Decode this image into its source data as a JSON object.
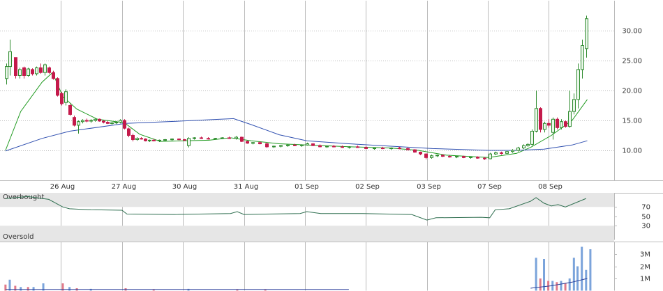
{
  "chart_data": [
    {
      "type": "candlestick",
      "x": [
        -0.9,
        -0.84,
        -0.75,
        -0.68,
        -0.61,
        -0.54,
        -0.47,
        -0.41,
        -0.34,
        -0.27,
        -0.2,
        -0.13,
        -0.06,
        0.01,
        0.08,
        0.14,
        0.21,
        0.28,
        0.35,
        0.42,
        0.49,
        0.56,
        0.62,
        0.69,
        0.76,
        0.83,
        0.9,
        0.97,
        1.04,
        1.11,
        1.17,
        1.24,
        1.31,
        1.38,
        1.45,
        1.52,
        1.61,
        1.7,
        1.81,
        1.93,
        2.02,
        2.09,
        2.18,
        2.3,
        2.41,
        2.52,
        2.64,
        2.75,
        2.87,
        2.96,
        3.05,
        3.14,
        3.26,
        3.37,
        3.49,
        3.6,
        3.71,
        3.83,
        3.94,
        4.03,
        4.13,
        4.24,
        4.35,
        4.47,
        4.61,
        4.72,
        4.86,
        5.0,
        5.13,
        5.27,
        5.41,
        5.54,
        5.68,
        5.8,
        5.89,
        5.98,
        6.07,
        6.16,
        6.25,
        6.37,
        6.48,
        6.6,
        6.71,
        6.83,
        6.94,
        7.03,
        7.12,
        7.22,
        7.31,
        7.4,
        7.49,
        7.58,
        7.65,
        7.72,
        7.79,
        7.86,
        7.92,
        7.99,
        8.06,
        8.13,
        8.2,
        8.27,
        8.34,
        8.41,
        8.47,
        8.54,
        8.61
      ],
      "open": [
        22,
        24,
        25.5,
        22.5,
        23.8,
        22.5,
        23.5,
        22.8,
        23.8,
        23,
        23.8,
        23,
        22,
        19.5,
        18,
        17.5,
        15.5,
        14.2,
        14.8,
        15,
        14.9,
        15,
        15.2,
        14.9,
        14.7,
        14.5,
        14.6,
        14.7,
        15,
        13.6,
        12.5,
        11.8,
        12,
        11.9,
        11.6,
        11.7,
        11.6,
        11.7,
        11.8,
        11.9,
        11.8,
        10.8,
        12,
        12.1,
        12,
        11.9,
        12,
        12.1,
        12,
        12.2,
        11.5,
        11.2,
        11.3,
        11.1,
        10.6,
        10.7,
        10.8,
        10.9,
        10.8,
        10.9,
        11.1,
        10.8,
        10.6,
        10.7,
        10.6,
        10.5,
        10.6,
        10.5,
        10.3,
        10.4,
        10.3,
        10.4,
        10.3,
        10.1,
        9.7,
        9.4,
        8.8,
        9.1,
        9.2,
        9.0,
        8.9,
        9.0,
        8.8,
        8.9,
        8.7,
        8.6,
        9.4,
        9.6,
        9.5,
        9.8,
        10.0,
        10.4,
        10.8,
        11.0,
        13.2,
        17.0,
        13.5,
        14.5,
        13.0,
        15.2,
        13.8,
        14.8,
        14.0,
        16.5,
        18.5,
        23.5,
        27.0
      ],
      "high": [
        24.5,
        28.5,
        25.5,
        23.8,
        24,
        23.8,
        23.7,
        24,
        24.5,
        24.5,
        24,
        23.3,
        22.2,
        19.8,
        20.2,
        17.8,
        15.8,
        15,
        15.2,
        15.3,
        15.2,
        15.3,
        15.3,
        15,
        14.9,
        14.7,
        14.9,
        15.2,
        15.2,
        13.8,
        12.8,
        12.2,
        12.2,
        12.0,
        11.8,
        11.9,
        11.8,
        11.9,
        12.0,
        12.0,
        11.9,
        12.2,
        12.2,
        12.3,
        12.2,
        12.1,
        12.2,
        12.3,
        12.4,
        12.3,
        11.6,
        11.4,
        11.5,
        11.3,
        10.8,
        10.9,
        11.0,
        11.1,
        11.0,
        11.3,
        11.2,
        11.0,
        10.8,
        10.9,
        10.8,
        10.7,
        10.8,
        10.7,
        10.5,
        10.6,
        10.5,
        10.6,
        10.5,
        10.2,
        9.8,
        9.5,
        9.3,
        9.3,
        9.3,
        9.2,
        9.1,
        9.1,
        9.0,
        9.0,
        8.9,
        9.6,
        9.8,
        9.8,
        9.9,
        10.2,
        10.6,
        11.0,
        11.2,
        13.5,
        20.0,
        17.2,
        14.8,
        15.2,
        15.5,
        15.5,
        15.2,
        15.0,
        20.0,
        19.5,
        24.5,
        28.5,
        32.5
      ],
      "low": [
        21,
        22.5,
        22,
        22,
        22,
        22.3,
        22.5,
        22.5,
        22.8,
        22.5,
        22.8,
        21.8,
        19,
        17.5,
        17.5,
        15.8,
        14,
        12.8,
        14.5,
        14.7,
        14.6,
        14.8,
        14.8,
        14.5,
        14.4,
        14.3,
        14.4,
        14.5,
        13.5,
        12.2,
        11.5,
        11.6,
        11.8,
        11.5,
        11.4,
        11.5,
        11.4,
        11.5,
        11.6,
        11.7,
        11.6,
        10.5,
        11.8,
        11.9,
        11.8,
        11.8,
        11.9,
        11.9,
        11.8,
        11.4,
        11.1,
        11.0,
        11.0,
        10.4,
        10.4,
        10.5,
        10.6,
        10.7,
        10.6,
        10.8,
        10.7,
        10.5,
        10.4,
        10.5,
        10.4,
        10.3,
        10.4,
        10.2,
        10.1,
        10.2,
        10.1,
        10.2,
        10.0,
        9.6,
        9.2,
        8.5,
        8.6,
        8.9,
        8.9,
        8.8,
        8.7,
        8.7,
        8.6,
        8.6,
        8.4,
        8.5,
        9.2,
        9.3,
        9.4,
        9.6,
        9.8,
        10.2,
        10.6,
        10.8,
        13.0,
        13.0,
        13.0,
        13.8,
        11.8,
        13.5,
        13.5,
        13.8,
        13.8,
        16.0,
        17.0,
        22.0,
        25.5
      ],
      "close": [
        24,
        26.5,
        22.5,
        23.5,
        22.5,
        23.6,
        22.8,
        23.8,
        23,
        24.3,
        23,
        22,
        19.2,
        17.8,
        19.8,
        16,
        14.2,
        14.8,
        15,
        14.9,
        15.0,
        15.2,
        14.9,
        14.7,
        14.5,
        14.6,
        14.7,
        15.0,
        13.7,
        12.5,
        11.8,
        12.0,
        11.9,
        11.6,
        11.7,
        11.6,
        11.7,
        11.8,
        11.9,
        11.8,
        11.7,
        12.0,
        12.1,
        12.0,
        11.9,
        12.0,
        12.1,
        12.0,
        12.2,
        11.5,
        11.2,
        11.3,
        11.1,
        10.6,
        10.7,
        10.8,
        10.9,
        10.8,
        10.9,
        11.1,
        10.8,
        10.6,
        10.7,
        10.6,
        10.5,
        10.6,
        10.5,
        10.3,
        10.4,
        10.3,
        10.4,
        10.3,
        10.1,
        9.7,
        9.4,
        8.8,
        9.1,
        9.2,
        9.0,
        8.9,
        9.0,
        8.8,
        8.9,
        8.7,
        8.6,
        9.4,
        9.6,
        9.5,
        9.8,
        10.0,
        10.4,
        10.8,
        11.0,
        13.2,
        17.0,
        13.5,
        14.5,
        14.2,
        15.2,
        13.8,
        14.8,
        14.0,
        16.5,
        18.5,
        23.5,
        27.5,
        32.0
      ],
      "up_color": "#2e8b2e",
      "down_color": "#c41a4b",
      "series": [
        {
          "color": "#1f9a1f",
          "x": [
            -0.91,
            -0.66,
            -0.31,
            -0.14,
            0.03,
            0.26,
            0.6,
            1.04,
            1.29,
            1.63,
            2.43,
            2.78,
            3.12,
            3.58,
            4.03,
            4.72,
            5.41,
            5.86,
            6.32,
            7.01,
            7.47,
            7.7,
            8.04,
            8.38,
            8.63
          ],
          "values": [
            10.0,
            16.5,
            21.4,
            23.0,
            19.0,
            16.9,
            15.2,
            14.6,
            12.7,
            11.5,
            11.7,
            12.1,
            11.6,
            11.1,
            10.9,
            10.6,
            10.4,
            10.0,
            9.2,
            8.8,
            9.5,
            10.5,
            12.5,
            15.0,
            18.5
          ]
        },
        {
          "color": "#3050b0",
          "x": [
            -0.91,
            -0.31,
            0.14,
            1.06,
            1.97,
            2.83,
            3.12,
            3.58,
            4.03,
            4.72,
            5.41,
            6.09,
            7.01,
            7.47,
            7.92,
            8.38,
            8.63
          ],
          "values": [
            9.9,
            12.0,
            13.2,
            14.5,
            14.9,
            15.3,
            14.3,
            12.6,
            11.6,
            11.1,
            10.7,
            10.3,
            10.0,
            10.0,
            10.2,
            10.9,
            11.6
          ]
        }
      ],
      "xlim": [
        -1,
        9.07
      ],
      "ylim": [
        5,
        35
      ],
      "xticks": [
        {
          "value": 0,
          "label": "26 Aug"
        },
        {
          "value": 1,
          "label": "27 Aug"
        },
        {
          "value": 2,
          "label": "30 Aug"
        },
        {
          "value": 3,
          "label": "31 Aug"
        },
        {
          "value": 4,
          "label": "01 Sep"
        },
        {
          "value": 5,
          "label": "02 Sep"
        },
        {
          "value": 6,
          "label": "03 Sep"
        },
        {
          "value": 7,
          "label": "07 Sep"
        },
        {
          "value": 8,
          "label": "08 Sep"
        }
      ],
      "yticks": [
        {
          "value": 10,
          "label": "10.00"
        },
        {
          "value": 15,
          "label": "15.00"
        },
        {
          "value": 20,
          "label": "20.00"
        },
        {
          "value": 25,
          "label": "25.00"
        },
        {
          "value": 30,
          "label": "30.00"
        }
      ],
      "grid": true
    },
    {
      "type": "line",
      "annotations": [
        "Overbought",
        "Oversold"
      ],
      "x": [
        -0.91,
        -0.54,
        -0.2,
        0.03,
        0.14,
        0.49,
        1.0,
        1.08,
        1.86,
        2.78,
        2.89,
        3.0,
        3.92,
        4.03,
        4.26,
        4.95,
        5.75,
        6.0,
        6.15,
        6.89,
        7.03,
        7.12,
        7.35,
        7.7,
        7.79,
        7.92,
        8.04,
        8.15,
        8.27,
        8.61
      ],
      "values": [
        88,
        92,
        86,
        70,
        66,
        64,
        63,
        55,
        54,
        56,
        60,
        54,
        56,
        60,
        56,
        56,
        54,
        42,
        47,
        48,
        47,
        64,
        66,
        82,
        90,
        78,
        72,
        75,
        70,
        88
      ],
      "color": "#2e6e4f",
      "band_color": "#e6e6e6",
      "xlim": [
        -1,
        9.07
      ],
      "ylim": [
        0,
        100
      ],
      "yticks": [
        30,
        50,
        70
      ]
    },
    {
      "type": "bar",
      "x": [
        -0.91,
        -0.84,
        -0.75,
        -0.66,
        -0.54,
        -0.45,
        -0.29,
        0.03,
        0.14,
        0.26,
        0.49,
        1.06,
        1.52,
        2.09,
        2.89,
        3.35,
        7.79,
        7.86,
        7.92,
        7.99,
        8.06,
        8.13,
        8.2,
        8.27,
        8.34,
        8.41,
        8.47,
        8.54,
        8.61,
        8.68
      ],
      "values": [
        500000,
        900000,
        400000,
        300000,
        300000,
        300000,
        600000,
        600000,
        300000,
        200000,
        150000,
        200000,
        100000,
        150000,
        100000,
        100000,
        2700000,
        1000000,
        2600000,
        800000,
        800000,
        700000,
        800000,
        600000,
        1000000,
        2700000,
        2000000,
        3600000,
        1700000,
        3400000
      ],
      "colors": [
        "#e07a8a",
        "#7ba4db",
        "#e07a8a",
        "#7ba4db",
        "#e07a8a",
        "#7ba4db",
        "#7ba4db",
        "#e07a8a",
        "#7ba4db",
        "#e07a8a",
        "#7ba4db",
        "#e07a8a",
        "#e07a8a",
        "#7ba4db",
        "#e07a8a",
        "#e07a8a",
        "#7ba4db",
        "#e07a8a",
        "#7ba4db",
        "#e07a8a",
        "#7ba4db",
        "#e07a8a",
        "#7ba4db",
        "#e07a8a",
        "#7ba4db",
        "#7ba4db",
        "#7ba4db",
        "#7ba4db",
        "#7ba4db",
        "#7ba4db"
      ],
      "series": [
        {
          "color": "#2a3f9a",
          "x": [
            -0.91,
            4.72,
            6.0,
            7.7,
            8.04,
            8.38,
            8.63
          ],
          "values": [
            100000,
            100000,
            null,
            200000,
            400000,
            700000,
            1000000
          ]
        }
      ],
      "xlim": [
        -1,
        9.07
      ],
      "ylim": [
        0,
        4000000
      ],
      "yticks": [
        {
          "value": 1000000,
          "label": "1M"
        },
        {
          "value": 2000000,
          "label": "2M"
        },
        {
          "value": 3000000,
          "label": "3M"
        }
      ]
    }
  ]
}
